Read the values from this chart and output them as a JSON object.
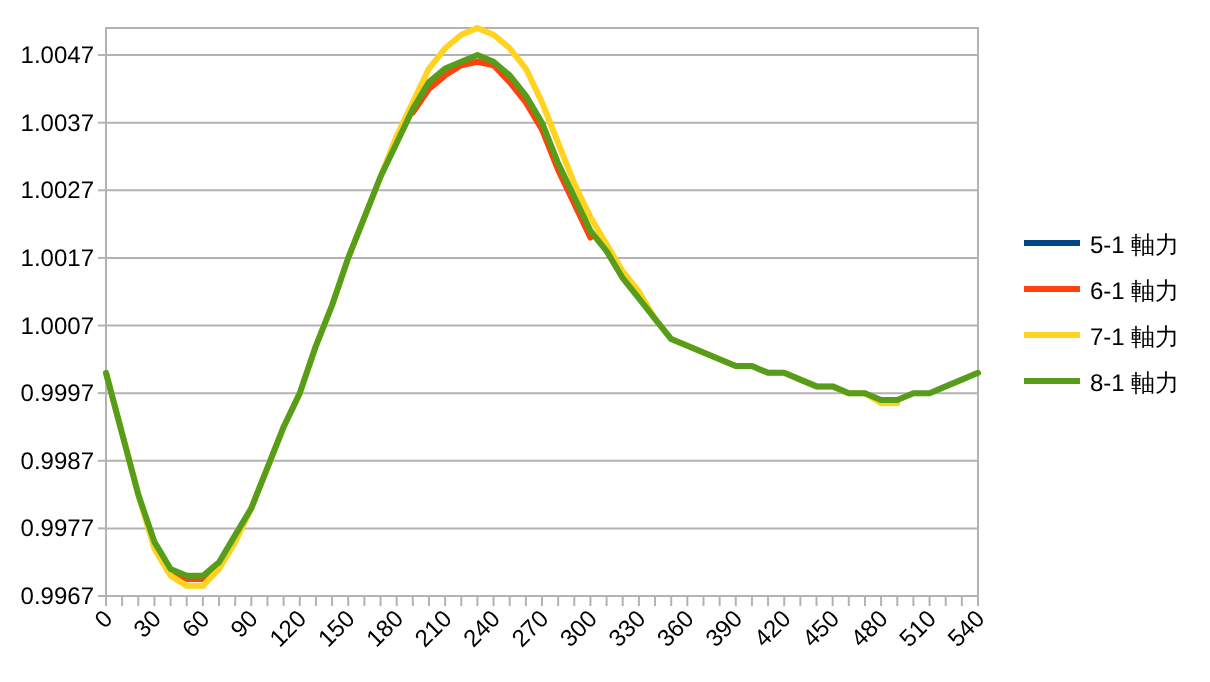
{
  "chart_data": {
    "type": "line",
    "x": [
      0,
      10,
      20,
      30,
      40,
      50,
      60,
      70,
      80,
      90,
      100,
      110,
      120,
      130,
      140,
      150,
      160,
      170,
      180,
      190,
      200,
      210,
      220,
      230,
      240,
      250,
      260,
      270,
      280,
      290,
      300,
      310,
      320,
      330,
      340,
      350,
      360,
      370,
      380,
      390,
      400,
      410,
      420,
      430,
      440,
      450,
      460,
      470,
      480,
      490,
      500,
      510,
      520,
      530,
      540
    ],
    "series": [
      {
        "name": "5-1 軸力",
        "color": "#004586",
        "values": [
          null,
          null,
          null,
          null,
          null,
          null,
          null,
          null,
          null,
          null,
          null,
          null,
          null,
          null,
          null,
          null,
          null,
          null,
          null,
          null,
          null,
          null,
          null,
          null,
          null,
          null,
          null,
          null,
          null,
          null,
          null,
          null,
          null,
          null,
          null,
          null,
          null,
          null,
          null,
          null,
          null,
          null,
          null,
          null,
          null,
          null,
          null,
          null,
          null,
          null,
          null,
          null,
          null,
          null,
          null
        ]
      },
      {
        "name": "6-1 軸力",
        "color": "#ff420e",
        "values": [
          null,
          null,
          null,
          null,
          0.99705,
          0.99695,
          0.99695,
          0.99715,
          null,
          null,
          null,
          null,
          null,
          null,
          null,
          null,
          null,
          null,
          null,
          1.00385,
          1.0042,
          1.0044,
          1.00455,
          1.0046,
          1.00455,
          1.0043,
          1.004,
          1.0036,
          1.003,
          1.0025,
          1.002,
          null,
          null,
          null,
          null,
          null,
          null,
          null,
          null,
          null,
          null,
          null,
          null,
          null,
          null,
          null,
          null,
          null,
          null,
          null,
          null,
          null,
          null,
          null,
          null
        ]
      },
      {
        "name": "7-1 軸力",
        "color": "#ffd320",
        "values": [
          1.0,
          0.9991,
          0.9982,
          0.9974,
          0.997,
          0.99685,
          0.99685,
          0.9971,
          0.9975,
          0.998,
          0.9986,
          0.9992,
          0.9997,
          1.0004,
          1.001,
          1.0017,
          1.0023,
          1.0029,
          1.0035,
          1.004,
          1.0045,
          1.0048,
          1.005,
          1.0051,
          1.005,
          1.0048,
          1.0045,
          1.004,
          1.0034,
          1.0028,
          1.0023,
          1.0019,
          1.0015,
          1.0012,
          1.0008,
          1.0005,
          1.0004,
          1.0003,
          1.0002,
          1.0001,
          1.0001,
          1.0,
          1.0,
          0.9999,
          0.9998,
          0.9998,
          0.9997,
          0.9997,
          0.99955,
          0.99955,
          null,
          null,
          null,
          null,
          null
        ]
      },
      {
        "name": "8-1 軸力",
        "color": "#579d1c",
        "values": [
          1.0,
          0.9991,
          0.9982,
          0.9975,
          0.9971,
          0.997,
          0.997,
          0.9972,
          0.9976,
          0.998,
          0.9986,
          0.9992,
          0.9997,
          1.0004,
          1.001,
          1.0017,
          1.0023,
          1.0029,
          1.0034,
          1.0039,
          1.0043,
          1.0045,
          1.0046,
          1.0047,
          1.0046,
          1.0044,
          1.0041,
          1.0037,
          1.0031,
          1.0026,
          1.0021,
          1.0018,
          1.0014,
          1.0011,
          1.0008,
          1.0005,
          1.0004,
          1.0003,
          1.0002,
          1.0001,
          1.0001,
          1.0,
          1.0,
          0.9999,
          0.9998,
          0.9998,
          0.9997,
          0.9997,
          0.9996,
          0.9996,
          0.9997,
          0.9997,
          0.9998,
          0.9999,
          1.0
        ]
      }
    ],
    "xlim": [
      0,
      540
    ],
    "xticks": [
      0,
      {
        "value": 10,
        "label": null
      },
      {
        "value": 20,
        "label": null
      },
      30,
      {
        "value": 40,
        "label": null
      },
      {
        "value": 50,
        "label": null
      },
      60,
      {
        "value": 70,
        "label": null
      },
      {
        "value": 80,
        "label": null
      },
      90,
      {
        "value": 100,
        "label": null
      },
      {
        "value": 110,
        "label": null
      },
      120,
      {
        "value": 130,
        "label": null
      },
      {
        "value": 140,
        "label": null
      },
      150,
      {
        "value": 160,
        "label": null
      },
      {
        "value": 170,
        "label": null
      },
      180,
      {
        "value": 190,
        "label": null
      },
      {
        "value": 200,
        "label": null
      },
      210,
      {
        "value": 220,
        "label": null
      },
      {
        "value": 230,
        "label": null
      },
      240,
      {
        "value": 250,
        "label": null
      },
      {
        "value": 260,
        "label": null
      },
      270,
      {
        "value": 280,
        "label": null
      },
      {
        "value": 290,
        "label": null
      },
      300,
      {
        "value": 310,
        "label": null
      },
      {
        "value": 320,
        "label": null
      },
      330,
      {
        "value": 340,
        "label": null
      },
      {
        "value": 350,
        "label": null
      },
      360,
      {
        "value": 370,
        "label": null
      },
      {
        "value": 380,
        "label": null
      },
      390,
      {
        "value": 400,
        "label": null
      },
      {
        "value": 410,
        "label": null
      },
      420,
      {
        "value": 430,
        "label": null
      },
      {
        "value": 440,
        "label": null
      },
      450,
      {
        "value": 460,
        "label": null
      },
      {
        "value": 470,
        "label": null
      },
      480,
      {
        "value": 490,
        "label": null
      },
      {
        "value": 500,
        "label": null
      },
      510,
      {
        "value": 520,
        "label": null
      },
      {
        "value": 530,
        "label": null
      },
      540
    ],
    "ylim": [
      0.9967,
      1.0051
    ],
    "yticks": [
      0.9967,
      0.9977,
      0.9987,
      0.9997,
      1.0007,
      1.0017,
      1.0027,
      1.0037,
      1.0047
    ],
    "grid": "y",
    "legend": "right",
    "marker": "none",
    "line_style": "solid"
  }
}
